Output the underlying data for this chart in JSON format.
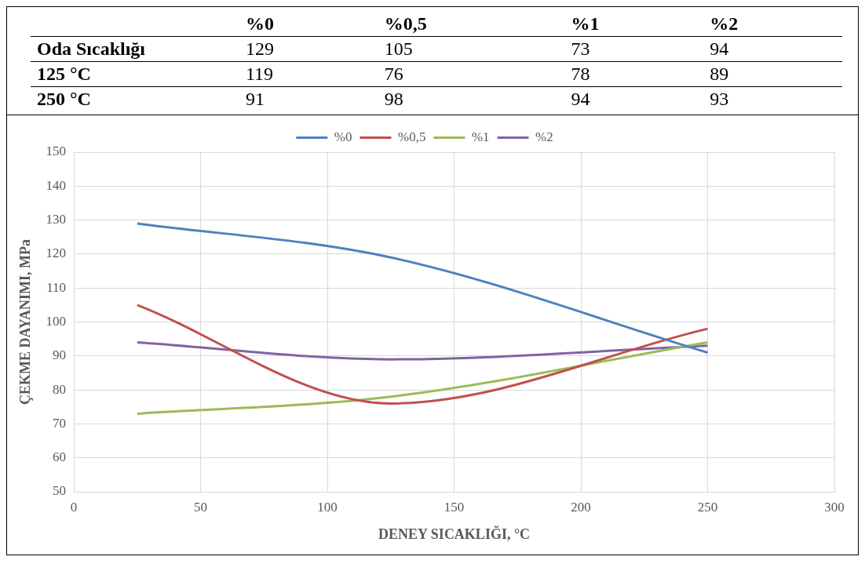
{
  "chart_data": [
    {
      "type": "heatmap",
      "categories": [
        "%0",
        "%0,5",
        "%1",
        "%2"
      ],
      "y_categories": [
        "Oda Sıcaklığı",
        "125 °C",
        "250 °C"
      ],
      "cells": [
        [
          129,
          105,
          73,
          94
        ],
        [
          119,
          76,
          78,
          89
        ],
        [
          91,
          98,
          94,
          93
        ]
      ],
      "data_labels": true
    },
    {
      "type": "line",
      "xlabel": "DENEY SICAKLIĞI, °C",
      "ylabel": "ÇEKME DAYANIMI, MPa",
      "x": [
        25,
        125,
        250
      ],
      "series": [
        {
          "name": "%0",
          "color": "#4f81bd",
          "values": [
            129,
            119,
            91
          ]
        },
        {
          "name": "%0,5",
          "color": "#c0504d",
          "values": [
            105,
            76,
            98
          ]
        },
        {
          "name": "%1",
          "color": "#9bbb59",
          "values": [
            73,
            78,
            94
          ]
        },
        {
          "name": "%2",
          "color": "#8064a2",
          "values": [
            94,
            89,
            93
          ]
        }
      ],
      "xlim": [
        0,
        300
      ],
      "xticks": [
        0,
        50,
        100,
        150,
        200,
        250,
        300
      ],
      "ylim": [
        50,
        150
      ],
      "yticks": [
        50,
        60,
        70,
        80,
        90,
        100,
        110,
        120,
        130,
        140,
        150
      ],
      "grid": true,
      "legend": "top",
      "marker": "none",
      "line_style": "solid"
    }
  ]
}
